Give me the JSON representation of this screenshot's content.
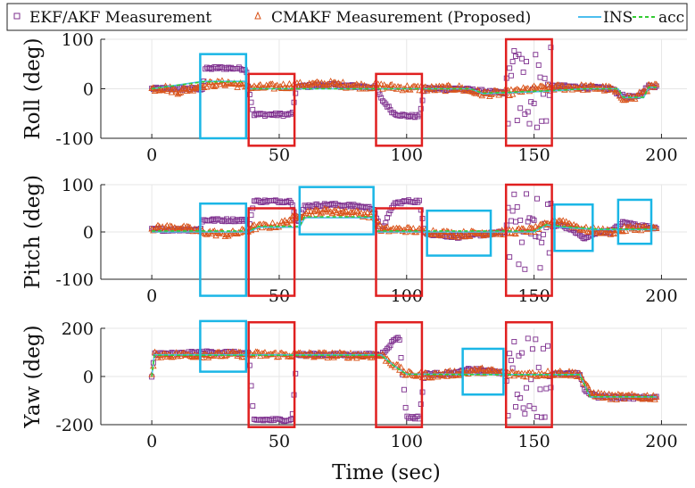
{
  "chart_data": [
    {
      "type": "line",
      "ylabel": "Roll (deg)",
      "xlim": [
        -20,
        210
      ],
      "ylim": [
        -100,
        100
      ],
      "xticks": [
        0,
        50,
        100,
        150,
        200
      ],
      "yticks": [
        -100,
        0,
        100
      ],
      "tick_labels_x": [
        "0",
        "50",
        "100",
        "150",
        "200"
      ],
      "tick_labels_y": [
        "-100",
        "0",
        "100"
      ],
      "series": [
        {
          "name": "EKF/AKF Measurement",
          "marker": "square",
          "color": "#7E2F8E",
          "x": [
            0,
            10,
            20,
            21,
            25,
            30,
            37,
            38,
            40,
            45,
            50,
            55,
            57,
            60,
            70,
            80,
            88,
            90,
            95,
            100,
            105,
            107,
            110,
            120,
            130,
            140,
            150,
            155,
            157,
            160,
            170,
            180,
            185,
            190,
            195,
            198
          ],
          "y": [
            0,
            0,
            0,
            40,
            42,
            42,
            40,
            0,
            -52,
            -52,
            -52,
            -52,
            5,
            5,
            8,
            5,
            3,
            -20,
            -50,
            -55,
            -55,
            0,
            0,
            0,
            -5,
            -10,
            0,
            0,
            5,
            5,
            3,
            0,
            -15,
            -18,
            5,
            5
          ]
        },
        {
          "name": "CMAKF Measurement (Proposed)",
          "marker": "triangle",
          "color": "#D95319",
          "x": [
            0,
            5,
            10,
            15,
            20,
            30,
            40,
            50,
            60,
            70,
            80,
            90,
            100,
            110,
            120,
            130,
            140,
            150,
            160,
            170,
            180,
            185,
            190,
            195,
            198
          ],
          "y": [
            0,
            2,
            -5,
            0,
            8,
            12,
            2,
            5,
            8,
            10,
            6,
            5,
            2,
            0,
            2,
            -10,
            -8,
            0,
            3,
            3,
            0,
            -18,
            -18,
            3,
            5
          ]
        },
        {
          "name": "INS",
          "color": "#4DBEEE",
          "x": [
            0,
            20,
            37,
            38,
            90,
            100,
            125,
            130,
            155,
            170,
            183,
            185,
            193,
            195,
            198
          ],
          "y": [
            0,
            15,
            15,
            0,
            0,
            0,
            0,
            -10,
            -5,
            0,
            0,
            -18,
            -18,
            3,
            3
          ]
        },
        {
          "name": "acc",
          "color": "#33CC33",
          "dashed": true,
          "x": [
            0,
            20,
            37,
            38,
            90,
            100,
            125,
            130,
            155,
            170,
            183,
            185,
            193,
            195,
            198
          ],
          "y": [
            0,
            14,
            14,
            0,
            0,
            0,
            0,
            -9,
            -4,
            0,
            0,
            -17,
            -17,
            3,
            3
          ]
        }
      ],
      "highlight_boxes": [
        {
          "color": "#1AB6E6",
          "x": [
            19,
            37
          ],
          "y": [
            -100,
            70
          ]
        },
        {
          "color": "#E02020",
          "x": [
            38,
            56
          ],
          "y": [
            -115,
            30
          ]
        },
        {
          "color": "#E02020",
          "x": [
            88,
            106
          ],
          "y": [
            -115,
            30
          ]
        },
        {
          "color": "#E02020",
          "x": [
            139,
            157
          ],
          "y": [
            -115,
            100
          ]
        }
      ]
    },
    {
      "type": "line",
      "ylabel": "Pitch (deg)",
      "xlim": [
        -20,
        210
      ],
      "ylim": [
        -100,
        100
      ],
      "xticks": [
        0,
        50,
        100,
        150,
        200
      ],
      "yticks": [
        -100,
        0,
        100
      ],
      "tick_labels_x": [
        "0",
        "50",
        "100",
        "150",
        "200"
      ],
      "tick_labels_y": [
        "-100",
        "0",
        "100"
      ],
      "series": [
        {
          "name": "EKF/AKF Measurement",
          "marker": "square",
          "color": "#7E2F8E",
          "x": [
            0,
            10,
            19,
            20,
            25,
            30,
            37,
            38,
            40,
            45,
            50,
            55,
            57,
            60,
            70,
            80,
            87,
            90,
            95,
            100,
            105,
            107,
            110,
            120,
            130,
            140,
            150,
            155,
            157,
            160,
            165,
            170,
            175,
            180,
            185,
            190,
            195,
            198
          ],
          "y": [
            5,
            5,
            5,
            25,
            25,
            25,
            25,
            5,
            65,
            65,
            65,
            65,
            15,
            55,
            58,
            55,
            50,
            0,
            60,
            65,
            65,
            0,
            -5,
            -10,
            -5,
            0,
            0,
            0,
            10,
            15,
            5,
            -15,
            0,
            0,
            20,
            15,
            10,
            10
          ]
        },
        {
          "name": "CMAKF Measurement (Proposed)",
          "marker": "triangle",
          "color": "#D95319",
          "x": [
            0,
            10,
            20,
            30,
            37,
            40,
            50,
            60,
            70,
            80,
            87,
            90,
            100,
            110,
            120,
            130,
            140,
            150,
            160,
            170,
            180,
            190,
            198
          ],
          "y": [
            8,
            10,
            0,
            -5,
            2,
            10,
            15,
            40,
            45,
            40,
            35,
            5,
            5,
            0,
            -5,
            -2,
            0,
            5,
            25,
            5,
            0,
            10,
            5
          ]
        },
        {
          "name": "INS",
          "color": "#4DBEEE",
          "x": [
            0,
            20,
            38,
            42,
            58,
            60,
            87,
            88,
            100,
            130,
            150,
            155,
            160,
            175,
            198
          ],
          "y": [
            0,
            0,
            0,
            10,
            10,
            30,
            30,
            0,
            0,
            0,
            0,
            15,
            10,
            5,
            5
          ]
        },
        {
          "name": "acc",
          "color": "#33CC33",
          "dashed": true,
          "x": [
            0,
            20,
            38,
            42,
            58,
            60,
            87,
            88,
            100,
            130,
            150,
            155,
            160,
            175,
            198
          ],
          "y": [
            2,
            2,
            2,
            12,
            12,
            32,
            32,
            2,
            2,
            2,
            2,
            16,
            12,
            6,
            6
          ]
        }
      ],
      "highlight_boxes": [
        {
          "color": "#1AB6E6",
          "x": [
            19,
            37
          ],
          "y": [
            -135,
            60
          ]
        },
        {
          "color": "#E02020",
          "x": [
            38,
            56
          ],
          "y": [
            -135,
            50
          ]
        },
        {
          "color": "#1AB6E6",
          "x": [
            58,
            87
          ],
          "y": [
            -5,
            95
          ]
        },
        {
          "color": "#E02020",
          "x": [
            88,
            106
          ],
          "y": [
            -135,
            50
          ]
        },
        {
          "color": "#1AB6E6",
          "x": [
            108,
            133
          ],
          "y": [
            -50,
            45
          ]
        },
        {
          "color": "#E02020",
          "x": [
            139,
            157
          ],
          "y": [
            -135,
            100
          ]
        },
        {
          "color": "#1AB6E6",
          "x": [
            158,
            173
          ],
          "y": [
            -40,
            58
          ]
        },
        {
          "color": "#1AB6E6",
          "x": [
            183,
            196
          ],
          "y": [
            -25,
            68
          ]
        }
      ]
    },
    {
      "type": "line",
      "ylabel": "Yaw (deg)",
      "xlabel": "Time (sec)",
      "xlim": [
        -20,
        210
      ],
      "ylim": [
        -200,
        200
      ],
      "xticks": [
        0,
        50,
        100,
        150,
        200
      ],
      "yticks": [
        -200,
        0,
        200
      ],
      "tick_labels_x": [
        "0",
        "50",
        "100",
        "150",
        "200"
      ],
      "tick_labels_y": [
        "-200",
        "0",
        "200"
      ],
      "series": [
        {
          "name": "EKF/AKF Measurement",
          "marker": "square",
          "color": "#7E2F8E",
          "x": [
            0,
            1,
            10,
            20,
            30,
            37,
            38,
            40,
            50,
            55,
            57,
            70,
            90,
            95,
            97,
            100,
            105,
            107,
            110,
            120,
            125,
            130,
            135,
            140,
            150,
            160,
            168,
            170,
            175,
            180,
            190,
            198
          ],
          "y": [
            0,
            95,
            95,
            100,
            100,
            95,
            95,
            -180,
            -180,
            -180,
            90,
            90,
            90,
            150,
            170,
            -170,
            -170,
            10,
            10,
            15,
            30,
            25,
            20,
            10,
            10,
            10,
            10,
            -60,
            -85,
            -85,
            -88,
            -88
          ]
        },
        {
          "name": "CMAKF Measurement (Proposed)",
          "marker": "triangle",
          "color": "#D95319",
          "x": [
            0,
            1,
            20,
            40,
            60,
            80,
            90,
            95,
            100,
            110,
            120,
            130,
            140,
            150,
            160,
            168,
            172,
            180,
            190,
            198
          ],
          "y": [
            0,
            90,
            90,
            92,
            90,
            88,
            88,
            50,
            10,
            5,
            15,
            25,
            10,
            10,
            15,
            10,
            -70,
            -85,
            -85,
            -85
          ]
        },
        {
          "name": "INS",
          "color": "#4DBEEE",
          "x": [
            0,
            1,
            90,
            95,
            100,
            140,
            168,
            172,
            198
          ],
          "y": [
            0,
            90,
            90,
            45,
            10,
            8,
            8,
            -85,
            -85
          ]
        },
        {
          "name": "acc",
          "color": "#33CC33",
          "dashed": true,
          "x": [
            0,
            1,
            90,
            95,
            100,
            140,
            168,
            172,
            198
          ],
          "y": [
            0,
            88,
            88,
            44,
            9,
            7,
            7,
            -84,
            -84
          ]
        }
      ],
      "highlight_boxes": [
        {
          "color": "#1AB6E6",
          "x": [
            19,
            37
          ],
          "y": [
            20,
            230
          ]
        },
        {
          "color": "#E02020",
          "x": [
            38,
            56
          ],
          "y": [
            -210,
            225
          ]
        },
        {
          "color": "#E02020",
          "x": [
            88,
            106
          ],
          "y": [
            -210,
            225
          ]
        },
        {
          "color": "#1AB6E6",
          "x": [
            122,
            138
          ],
          "y": [
            -75,
            115
          ]
        },
        {
          "color": "#E02020",
          "x": [
            139,
            157
          ],
          "y": [
            -210,
            225
          ]
        }
      ]
    }
  ],
  "legend": {
    "placement": "top",
    "entries": [
      {
        "label": "EKF/AKF Measurement",
        "marker": "square",
        "color": "#7E2F8E"
      },
      {
        "label": "CMAKF Measurement (Proposed)",
        "marker": "triangle",
        "color": "#D95319"
      },
      {
        "label": "INS",
        "line": "solid",
        "color": "#4DBEEE"
      },
      {
        "label": "acc",
        "line": "dashed",
        "color": "#33CC33"
      }
    ]
  }
}
